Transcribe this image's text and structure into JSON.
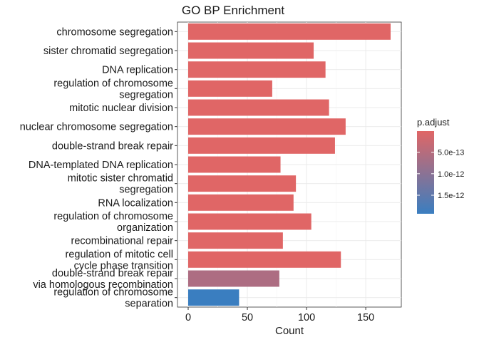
{
  "chart_data": {
    "type": "bar",
    "orientation": "horizontal",
    "title": "GO BP Enrichment",
    "xlabel": "Count",
    "ylabel": "",
    "xlim": [
      0,
      178
    ],
    "xticks": [
      0,
      50,
      100,
      150
    ],
    "grid": true,
    "legend_placement": "right",
    "categories": [
      {
        "lines": [
          "chromosome segregation"
        ],
        "count": 171,
        "p_adjust": 1e-14
      },
      {
        "lines": [
          "sister chromatid segregation"
        ],
        "count": 106,
        "p_adjust": 1e-14
      },
      {
        "lines": [
          "DNA replication"
        ],
        "count": 116,
        "p_adjust": 1e-14
      },
      {
        "lines": [
          "regulation of chromosome",
          "segregation"
        ],
        "count": 71,
        "p_adjust": 1e-14
      },
      {
        "lines": [
          "mitotic nuclear division"
        ],
        "count": 119,
        "p_adjust": 1e-14
      },
      {
        "lines": [
          "nuclear chromosome segregation"
        ],
        "count": 133,
        "p_adjust": 1e-14
      },
      {
        "lines": [
          "double-strand break repair"
        ],
        "count": 124,
        "p_adjust": 1e-14
      },
      {
        "lines": [
          "DNA-templated DNA replication"
        ],
        "count": 78,
        "p_adjust": 1e-14
      },
      {
        "lines": [
          "mitotic sister chromatid",
          "segregation"
        ],
        "count": 91,
        "p_adjust": 1e-14
      },
      {
        "lines": [
          "RNA localization"
        ],
        "count": 89,
        "p_adjust": 1e-14
      },
      {
        "lines": [
          "regulation of chromosome",
          "organization"
        ],
        "count": 104,
        "p_adjust": 1e-14
      },
      {
        "lines": [
          "recombinational repair"
        ],
        "count": 80,
        "p_adjust": 1e-14
      },
      {
        "lines": [
          "regulation of mitotic cell",
          "cycle phase transition"
        ],
        "count": 129,
        "p_adjust": 1e-14
      },
      {
        "lines": [
          "double-strand break repair",
          "via homologous recombination"
        ],
        "count": 77,
        "p_adjust": 6e-13
      },
      {
        "lines": [
          "regulation of chromosome",
          "separation"
        ],
        "count": 43,
        "p_adjust": 1.93e-12
      }
    ],
    "color_scale": {
      "title": "p.adjust",
      "low_color": "#e06666",
      "high_color": "#3a7ec0",
      "domain": [
        1e-14,
        1.93e-12
      ],
      "ticks": [
        {
          "value": 5e-13,
          "label": "5.0e-13"
        },
        {
          "value": 1e-12,
          "label": "1.0e-12"
        },
        {
          "value": 1.5e-12,
          "label": "1.5e-12"
        }
      ]
    }
  }
}
